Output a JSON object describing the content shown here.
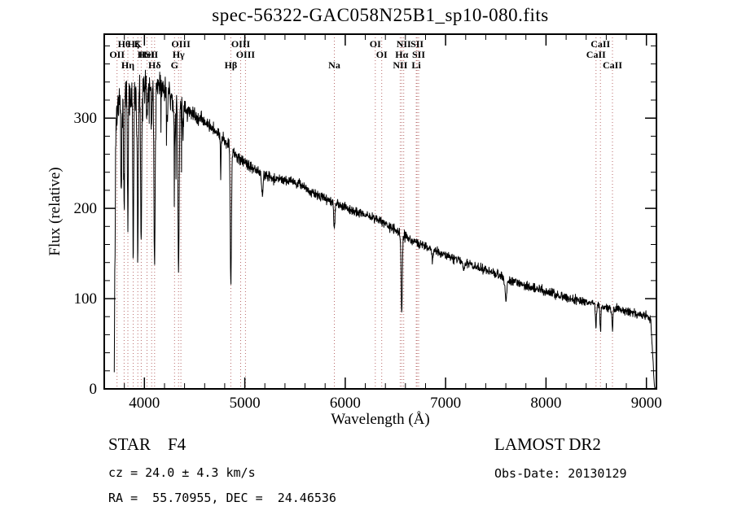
{
  "title": "spec-56322-GAC058N25B1_sp10-080.fits",
  "chart_data": {
    "type": "line",
    "title": "spec-56322-GAC058N25B1_sp10-080.fits",
    "xlabel": "Wavelength (Å)",
    "ylabel": "Flux (relative)",
    "xlim": [
      3600,
      9100
    ],
    "ylim": [
      0,
      393
    ],
    "xticks": [
      4000,
      5000,
      6000,
      7000,
      8000,
      9000
    ],
    "x_minor_step": 200,
    "yticks": [
      0,
      100,
      200,
      300
    ],
    "y_minor_step": 20,
    "line_color": "#000000",
    "marker_line_color": "#b86a6a",
    "continuum": [
      [
        3700,
        285
      ],
      [
        3750,
        310
      ],
      [
        3820,
        322
      ],
      [
        3900,
        330
      ],
      [
        4000,
        334
      ],
      [
        4120,
        337
      ],
      [
        4200,
        330
      ],
      [
        4300,
        321
      ],
      [
        4400,
        310
      ],
      [
        4500,
        303
      ],
      [
        4600,
        296
      ],
      [
        4700,
        287
      ],
      [
        4800,
        275
      ],
      [
        4900,
        260
      ],
      [
        5000,
        250
      ],
      [
        5100,
        243
      ],
      [
        5200,
        237
      ],
      [
        5300,
        232
      ],
      [
        5430,
        231
      ],
      [
        5550,
        226
      ],
      [
        5650,
        218
      ],
      [
        5800,
        211
      ],
      [
        5900,
        206
      ],
      [
        6000,
        201
      ],
      [
        6100,
        197
      ],
      [
        6250,
        191
      ],
      [
        6400,
        183
      ],
      [
        6550,
        172
      ],
      [
        6700,
        163
      ],
      [
        6850,
        156
      ],
      [
        7000,
        148
      ],
      [
        7150,
        142
      ],
      [
        7300,
        136
      ],
      [
        7450,
        129
      ],
      [
        7600,
        122
      ],
      [
        7750,
        116
      ],
      [
        7900,
        111
      ],
      [
        8050,
        106
      ],
      [
        8200,
        101
      ],
      [
        8350,
        97
      ],
      [
        8500,
        93
      ],
      [
        8650,
        90
      ],
      [
        8800,
        86
      ],
      [
        8950,
        82
      ],
      [
        9040,
        79
      ],
      [
        9070,
        60
      ],
      [
        9085,
        15
      ],
      [
        9095,
        5
      ]
    ],
    "absorption_lines": [
      [
        3770,
        90,
        4
      ],
      [
        3798,
        120,
        4
      ],
      [
        3835,
        150,
        4
      ],
      [
        3889,
        170,
        5
      ],
      [
        3934,
        190,
        5
      ],
      [
        3968,
        180,
        5
      ],
      [
        4026,
        40,
        4
      ],
      [
        4072,
        35,
        4
      ],
      [
        4101,
        200,
        6
      ],
      [
        4227,
        30,
        4
      ],
      [
        4300,
        45,
        7
      ],
      [
        4340,
        195,
        6
      ],
      [
        4383,
        35,
        4
      ],
      [
        4760,
        50,
        3
      ],
      [
        4861,
        150,
        6
      ],
      [
        5175,
        22,
        8
      ],
      [
        5892,
        28,
        6
      ],
      [
        6563,
        88,
        6
      ],
      [
        6870,
        14,
        7
      ],
      [
        7180,
        10,
        8
      ],
      [
        7600,
        22,
        9
      ],
      [
        8498,
        22,
        5
      ],
      [
        8542,
        28,
        5
      ],
      [
        8662,
        25,
        5
      ]
    ],
    "noise": {
      "seed": 56322,
      "base": 5,
      "blue_amp": 32,
      "blue_scale": 380,
      "spike_prob": 0.022,
      "spike_max": 130
    },
    "spectral_markers": [
      {
        "label": "OII",
        "wl": 3727,
        "row": 1
      },
      {
        "label": "Hθ",
        "wl": 3798,
        "row": 0
      },
      {
        "label": "Hη",
        "wl": 3835,
        "row": 2
      },
      {
        "label": "Hζ",
        "wl": 3889,
        "row": 0
      },
      {
        "label": "K",
        "wl": 3934,
        "row": 0
      },
      {
        "label": "H",
        "wl": 3968,
        "row": 1
      },
      {
        "label": "HeI",
        "wl": 4026,
        "row": 1
      },
      {
        "label": "SII",
        "wl": 4072,
        "row": 1
      },
      {
        "label": "Hδ",
        "wl": 4101,
        "row": 2
      },
      {
        "label": "G",
        "wl": 4300,
        "row": 2
      },
      {
        "label": "Hγ",
        "wl": 4340,
        "row": 1
      },
      {
        "label": "OIII",
        "wl": 4363,
        "row": 0
      },
      {
        "label": "Hβ",
        "wl": 4861,
        "row": 2
      },
      {
        "label": "OIII",
        "wl": 4959,
        "row": 0
      },
      {
        "label": "OIII",
        "wl": 5007,
        "row": 1
      },
      {
        "label": "Na",
        "wl": 5892,
        "row": 2
      },
      {
        "label": "OI",
        "wl": 6300,
        "row": 0
      },
      {
        "label": "OI",
        "wl": 6364,
        "row": 1
      },
      {
        "label": "NII",
        "wl": 6548,
        "row": 2
      },
      {
        "label": "Hα",
        "wl": 6563,
        "row": 1
      },
      {
        "label": "NII",
        "wl": 6583,
        "row": 0
      },
      {
        "label": "Li",
        "wl": 6708,
        "row": 2
      },
      {
        "label": "SII",
        "wl": 6716,
        "row": 0
      },
      {
        "label": "SII",
        "wl": 6731,
        "row": 1
      },
      {
        "label": "CaII",
        "wl": 8498,
        "row": 1
      },
      {
        "label": "CaII",
        "wl": 8542,
        "row": 0
      },
      {
        "label": "CaII",
        "wl": 8662,
        "row": 2
      }
    ]
  },
  "annotations": {
    "star_class": "STAR    F4",
    "survey": "LAMOST DR2",
    "cz": "cz = 24.0 ± 4.3 km/s",
    "obs_date": "Obs-Date: 20130129",
    "coords": "RA =  55.70955, DEC =  24.46536"
  }
}
